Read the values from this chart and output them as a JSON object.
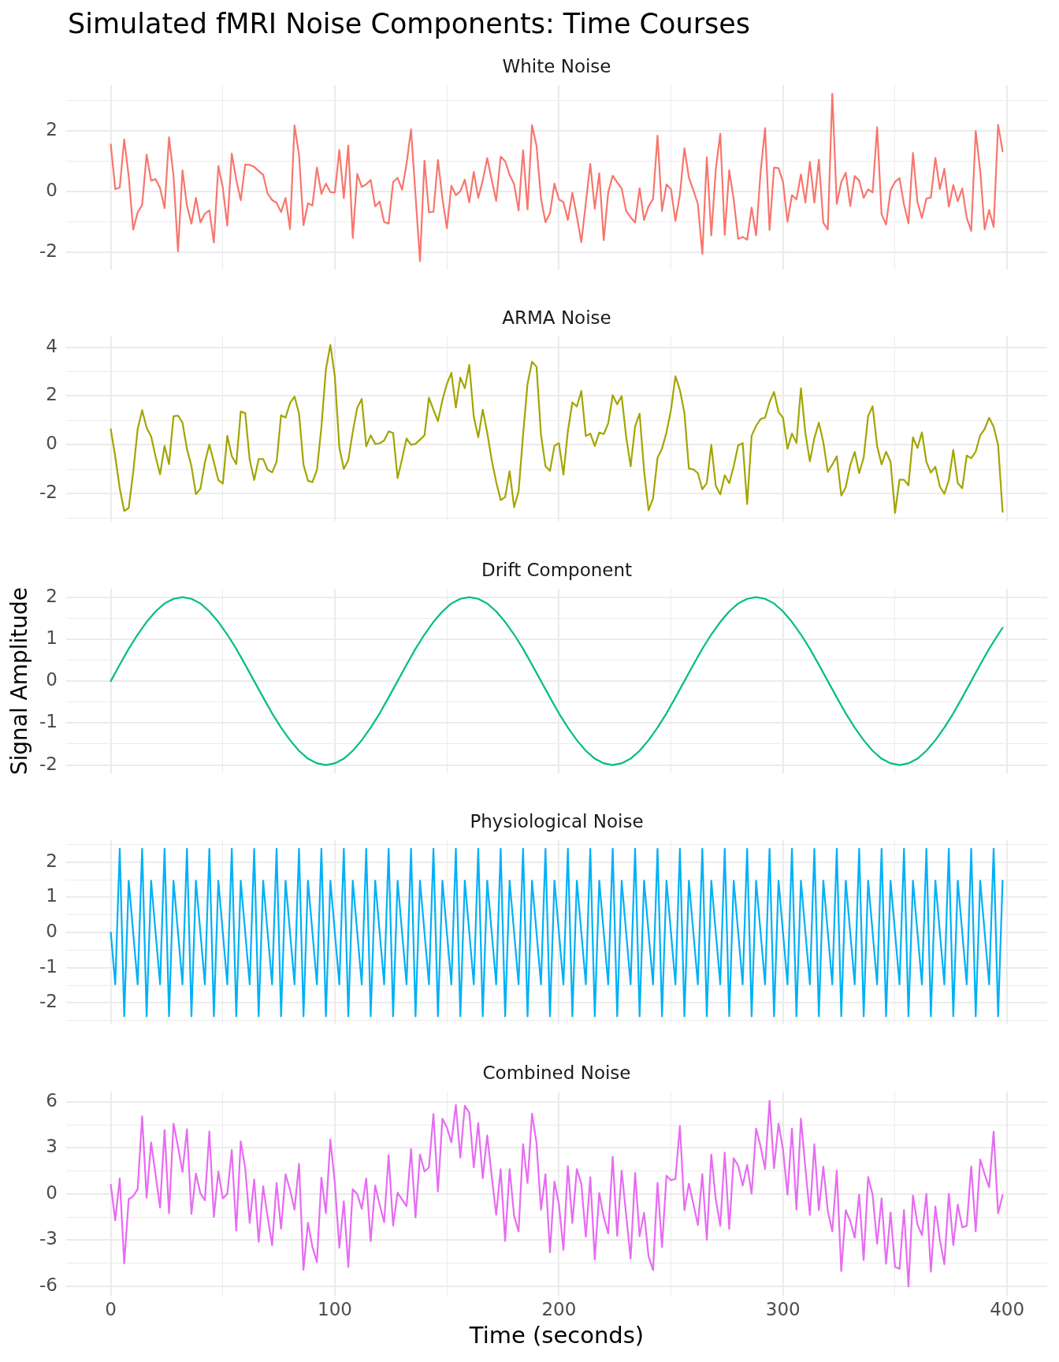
{
  "chart_data": [
    {
      "type": "line",
      "title": "Simulated fMRI Noise Components: Time Courses",
      "subtitle": "White Noise",
      "x": [
        0,
        2,
        4,
        6,
        8,
        10,
        12,
        14,
        16,
        18,
        20,
        22,
        24,
        26,
        28,
        30,
        32,
        34,
        36,
        38,
        40,
        42,
        44,
        46,
        48,
        50,
        52,
        54,
        56,
        58,
        60,
        62,
        64,
        66,
        68,
        70,
        72,
        74,
        76,
        78,
        80,
        82,
        84,
        86,
        88,
        90,
        92,
        94,
        96,
        98,
        100,
        102,
        104,
        106,
        108,
        110,
        112,
        114,
        116,
        118,
        120,
        122,
        124,
        126,
        128,
        130,
        132,
        134,
        136,
        138,
        140,
        142,
        144,
        146,
        148,
        150,
        152,
        154,
        156,
        158,
        160,
        162,
        164,
        166,
        168,
        170,
        172,
        174,
        176,
        178,
        180,
        182,
        184,
        186,
        188,
        190,
        192,
        194,
        196,
        198,
        200,
        202,
        204,
        206,
        208,
        210,
        212,
        214,
        216,
        218,
        220,
        222,
        224,
        226,
        228,
        230,
        232,
        234,
        236,
        238,
        240,
        242,
        244,
        246,
        248,
        250,
        252,
        254,
        256,
        258,
        260,
        262,
        264,
        266,
        268,
        270,
        272,
        274,
        276,
        278,
        280,
        282,
        284,
        286,
        288,
        290,
        292,
        294,
        296,
        298,
        300,
        302,
        304,
        306,
        308,
        310,
        312,
        314,
        316,
        318,
        320,
        322,
        324,
        326,
        328,
        330,
        332,
        334,
        336,
        338,
        340,
        342,
        344,
        346,
        348,
        350,
        352,
        354,
        356,
        358,
        360,
        362,
        364,
        366,
        368,
        370,
        372,
        374,
        376,
        378,
        380,
        382,
        384,
        386,
        388,
        390,
        392,
        394,
        396,
        398
      ],
      "series": [
        {
          "color": "#f8766d",
          "values": [
            1.55,
            0.08,
            0.13,
            1.72,
            0.5,
            -1.26,
            -0.69,
            -0.44,
            1.22,
            0.36,
            0.41,
            0.11,
            -0.55,
            1.79,
            0.52,
            -1.97,
            0.7,
            -0.47,
            -1.06,
            -0.21,
            -1.02,
            -0.73,
            -0.62,
            -1.68,
            0.84,
            0.13,
            -1.13,
            1.25,
            0.39,
            -0.29,
            0.89,
            0.88,
            0.81,
            0.68,
            0.55,
            -0.07,
            -0.28,
            -0.37,
            -0.68,
            -0.21,
            -1.24,
            2.18,
            1.22,
            -1.11,
            -0.39,
            -0.46,
            0.79,
            -0.08,
            0.26,
            -0.02,
            -0.03,
            1.37,
            -0.22,
            1.52,
            -1.53,
            0.58,
            0.15,
            0.24,
            0.38,
            -0.49,
            -0.33,
            -1.01,
            -1.06,
            0.31,
            0.45,
            0.06,
            0.91,
            2.05,
            -0.12,
            -2.3,
            1.02,
            -0.69,
            -0.67,
            1.04,
            -0.23,
            -1.21,
            0.19,
            -0.12,
            0.01,
            0.39,
            -0.36,
            0.65,
            -0.21,
            0.36,
            1.1,
            0.39,
            -0.31,
            1.15,
            1.0,
            0.55,
            0.24,
            -0.62,
            1.36,
            -0.59,
            2.19,
            1.51,
            -0.23,
            -1.01,
            -0.72,
            0.26,
            -0.26,
            -0.35,
            -0.94,
            -0.04,
            -0.82,
            -1.67,
            -0.38,
            0.91,
            -0.57,
            0.6,
            -1.61,
            -0.03,
            0.52,
            0.3,
            0.1,
            -0.64,
            -0.85,
            -1.02,
            0.11,
            -0.94,
            -0.49,
            -0.25,
            1.84,
            -0.64,
            0.23,
            0.08,
            -0.97,
            -0.1,
            1.43,
            0.46,
            0.04,
            -0.41,
            -2.06,
            1.13,
            -1.45,
            0.73,
            1.91,
            -1.43,
            0.7,
            -0.27,
            -1.56,
            -1.5,
            -1.59,
            -0.53,
            -1.45,
            0.64,
            2.09,
            -1.27,
            0.79,
            0.77,
            0.32,
            -1.0,
            -0.12,
            -0.26,
            0.56,
            -0.36,
            0.98,
            -0.37,
            1.05,
            -1.03,
            -1.25,
            3.23,
            -0.41,
            0.31,
            0.62,
            -0.48,
            0.51,
            0.36,
            -0.21,
            0.07,
            -0.03,
            2.12,
            -0.75,
            -1.09,
            0.04,
            0.32,
            0.44,
            -0.43,
            -1.05,
            1.27,
            -0.35,
            -0.87,
            -0.23,
            -0.2,
            1.11,
            0.08,
            0.75,
            -0.5,
            0.21,
            -0.32,
            0.1,
            -0.87,
            -1.3,
            1.99,
            0.69,
            -1.25,
            -0.61,
            -1.17,
            2.2,
            1.33
          ]
        }
      ],
      "xlim": [
        -19.9,
        417.9
      ],
      "ylim": [
        -2.58,
        3.51
      ],
      "xticks": [
        0,
        {
          "value": 50,
          "label": null
        },
        100,
        {
          "value": 150,
          "label": null
        },
        200,
        {
          "value": 250,
          "label": null
        },
        300,
        {
          "value": 350,
          "label": null
        },
        400
      ],
      "yticks": [
        -2,
        {
          "value": -1,
          "label": null
        },
        0,
        {
          "value": 1,
          "label": null
        },
        2,
        {
          "value": 3,
          "label": null
        }
      ],
      "grid": true,
      "tick_labels": "y"
    },
    {
      "type": "line",
      "subtitle": "ARMA Noise",
      "x": [
        0,
        2,
        4,
        6,
        8,
        10,
        12,
        14,
        16,
        18,
        20,
        22,
        24,
        26,
        28,
        30,
        32,
        34,
        36,
        38,
        40,
        42,
        44,
        46,
        48,
        50,
        52,
        54,
        56,
        58,
        60,
        62,
        64,
        66,
        68,
        70,
        72,
        74,
        76,
        78,
        80,
        82,
        84,
        86,
        88,
        90,
        92,
        94,
        96,
        98,
        100,
        102,
        104,
        106,
        108,
        110,
        112,
        114,
        116,
        118,
        120,
        122,
        124,
        126,
        128,
        130,
        132,
        134,
        136,
        138,
        140,
        142,
        144,
        146,
        148,
        150,
        152,
        154,
        156,
        158,
        160,
        162,
        164,
        166,
        168,
        170,
        172,
        174,
        176,
        178,
        180,
        182,
        184,
        186,
        188,
        190,
        192,
        194,
        196,
        198,
        200,
        202,
        204,
        206,
        208,
        210,
        212,
        214,
        216,
        218,
        220,
        222,
        224,
        226,
        228,
        230,
        232,
        234,
        236,
        238,
        240,
        242,
        244,
        246,
        248,
        250,
        252,
        254,
        256,
        258,
        260,
        262,
        264,
        266,
        268,
        270,
        272,
        274,
        276,
        278,
        280,
        282,
        284,
        286,
        288,
        290,
        292,
        294,
        296,
        298,
        300,
        302,
        304,
        306,
        308,
        310,
        312,
        314,
        316,
        318,
        320,
        322,
        324,
        326,
        328,
        330,
        332,
        334,
        336,
        338,
        340,
        342,
        344,
        346,
        348,
        350,
        352,
        354,
        356,
        358,
        360,
        362,
        364,
        366,
        368,
        370,
        372,
        374,
        376,
        378,
        380,
        382,
        384,
        386,
        388,
        390,
        392,
        394,
        396,
        398
      ],
      "series": [
        {
          "color": "#a3a500",
          "values": [
            0.64,
            -0.49,
            -1.78,
            -2.71,
            -2.59,
            -1.13,
            0.64,
            1.42,
            0.7,
            0.35,
            -0.49,
            -1.21,
            -0.05,
            -0.79,
            1.17,
            1.2,
            0.91,
            -0.17,
            -0.88,
            -2.02,
            -1.8,
            -0.72,
            0.01,
            -0.71,
            -1.44,
            -1.59,
            0.37,
            -0.46,
            -0.79,
            1.37,
            1.3,
            -0.62,
            -1.44,
            -0.58,
            -0.58,
            -1.02,
            -1.13,
            -0.7,
            1.21,
            1.12,
            1.71,
            1.98,
            1.29,
            -0.81,
            -1.47,
            -1.53,
            -1.03,
            0.73,
            3.09,
            4.1,
            2.8,
            -0.1,
            -0.99,
            -0.63,
            0.54,
            1.52,
            1.88,
            -0.06,
            0.39,
            0.04,
            0.06,
            0.18,
            0.55,
            0.49,
            -1.37,
            -0.58,
            0.26,
            0.0,
            0.04,
            0.21,
            0.39,
            1.93,
            1.44,
            0.97,
            1.83,
            2.5,
            2.95,
            1.53,
            2.76,
            2.32,
            3.27,
            1.15,
            0.31,
            1.44,
            0.5,
            -0.62,
            -1.52,
            -2.27,
            -2.14,
            -1.08,
            -2.56,
            -1.91,
            0.41,
            2.51,
            3.41,
            3.2,
            0.41,
            -0.88,
            -1.07,
            -0.04,
            0.07,
            -1.22,
            0.57,
            1.74,
            1.57,
            2.21,
            0.36,
            0.46,
            -0.05,
            0.5,
            0.44,
            0.88,
            2.04,
            1.66,
            2.0,
            0.33,
            -0.88,
            0.76,
            1.28,
            -1.05,
            -2.68,
            -2.2,
            -0.53,
            -0.16,
            0.51,
            1.43,
            2.81,
            2.24,
            1.31,
            -0.97,
            -1.01,
            -1.16,
            -1.83,
            -1.57,
            0.0,
            -1.68,
            -2.03,
            -1.25,
            -1.57,
            -0.88,
            -0.02,
            0.07,
            -2.43,
            0.37,
            0.78,
            1.06,
            1.11,
            1.75,
            2.17,
            1.35,
            1.11,
            -0.16,
            0.46,
            0.08,
            2.32,
            0.47,
            -0.68,
            0.28,
            0.91,
            0.1,
            -1.11,
            -0.81,
            -0.47,
            -2.08,
            -1.74,
            -0.84,
            -0.29,
            -1.16,
            -0.53,
            1.18,
            1.58,
            -0.05,
            -0.8,
            -0.28,
            -0.7,
            -2.79,
            -1.43,
            -1.43,
            -1.66,
            0.31,
            -0.13,
            0.51,
            -0.7,
            -1.14,
            -0.9,
            -1.71,
            -2.01,
            -1.45,
            -0.21,
            -1.57,
            -1.78,
            -0.44,
            -0.55,
            -0.28,
            0.39,
            0.65,
            1.11,
            0.74,
            -0.01,
            -2.75
          ]
        }
      ],
      "xlim": [
        -19.9,
        417.9
      ],
      "ylim": [
        -3.13,
        4.44
      ],
      "xticks": [
        0,
        {
          "value": 50,
          "label": null
        },
        100,
        {
          "value": 150,
          "label": null
        },
        200,
        {
          "value": 250,
          "label": null
        },
        300,
        {
          "value": 350,
          "label": null
        },
        400
      ],
      "yticks": [
        {
          "value": -3,
          "label": null
        },
        -2,
        {
          "value": -1,
          "label": null
        },
        0,
        {
          "value": 1,
          "label": null
        },
        2,
        {
          "value": 3,
          "label": null
        },
        4
      ],
      "grid": true,
      "tick_labels": "y"
    },
    {
      "type": "line",
      "subtitle": "Drift Component",
      "ylabel": "Signal Amplitude",
      "x": [
        0,
        4,
        8,
        12,
        16,
        20,
        24,
        28,
        32,
        36,
        40,
        44,
        48,
        52,
        56,
        60,
        64,
        68,
        72,
        76,
        80,
        84,
        88,
        92,
        96,
        100,
        104,
        108,
        112,
        116,
        120,
        124,
        128,
        132,
        136,
        140,
        144,
        148,
        152,
        156,
        160,
        164,
        168,
        172,
        176,
        180,
        184,
        188,
        192,
        196,
        200,
        204,
        208,
        212,
        216,
        220,
        224,
        228,
        232,
        236,
        240,
        244,
        248,
        252,
        256,
        260,
        264,
        268,
        272,
        276,
        280,
        284,
        288,
        292,
        296,
        300,
        304,
        308,
        312,
        316,
        320,
        324,
        328,
        332,
        336,
        340,
        344,
        348,
        352,
        356,
        360,
        364,
        368,
        372,
        376,
        380,
        384,
        388,
        392,
        396,
        398
      ],
      "series": [
        {
          "color": "#00bf7d",
          "values": [
            0,
            0.39,
            0.77,
            1.11,
            1.41,
            1.66,
            1.85,
            1.96,
            2,
            1.96,
            1.85,
            1.66,
            1.41,
            1.11,
            0.77,
            0.39,
            0,
            -0.39,
            -0.77,
            -1.11,
            -1.41,
            -1.66,
            -1.85,
            -1.96,
            -2,
            -1.96,
            -1.85,
            -1.66,
            -1.41,
            -1.11,
            -0.77,
            -0.39,
            0,
            0.39,
            0.77,
            1.11,
            1.41,
            1.66,
            1.85,
            1.96,
            2,
            1.96,
            1.85,
            1.66,
            1.41,
            1.11,
            0.77,
            0.39,
            0,
            -0.39,
            -0.77,
            -1.11,
            -1.41,
            -1.66,
            -1.85,
            -1.96,
            -2,
            -1.96,
            -1.85,
            -1.66,
            -1.41,
            -1.11,
            -0.77,
            -0.39,
            0,
            0.39,
            0.77,
            1.11,
            1.41,
            1.66,
            1.85,
            1.96,
            2,
            1.96,
            1.85,
            1.66,
            1.41,
            1.11,
            0.77,
            0.39,
            0,
            -0.39,
            -0.77,
            -1.11,
            -1.41,
            -1.66,
            -1.85,
            -1.96,
            -2,
            -1.96,
            -1.85,
            -1.66,
            -1.41,
            -1.11,
            -0.77,
            -0.39,
            0,
            0.39,
            0.77,
            1.11,
            1.27
          ]
        }
      ],
      "xlim": [
        -19.9,
        417.9
      ],
      "ylim": [
        -2.2,
        2.2
      ],
      "xticks": [
        0,
        {
          "value": 50,
          "label": null
        },
        100,
        {
          "value": 150,
          "label": null
        },
        200,
        {
          "value": 250,
          "label": null
        },
        300,
        {
          "value": 350,
          "label": null
        },
        400
      ],
      "yticks": [
        -2,
        {
          "value": -1.5,
          "label": null
        },
        -1,
        {
          "value": -0.5,
          "label": null
        },
        0,
        {
          "value": 0.5,
          "label": null
        },
        1,
        {
          "value": 1.5,
          "label": null
        },
        2
      ],
      "grid": true,
      "tick_labels": "y"
    },
    {
      "type": "line",
      "subtitle": "Physiological Noise",
      "x": [
        0,
        2,
        4,
        6,
        8,
        10,
        12,
        14,
        16,
        18,
        20,
        22,
        24,
        26,
        28,
        30,
        32,
        34,
        36,
        38,
        40,
        42,
        44,
        46,
        48,
        50,
        52,
        54,
        56,
        58,
        60,
        62,
        64,
        66,
        68,
        70,
        72,
        74,
        76,
        78,
        80,
        82,
        84,
        86,
        88,
        90,
        92,
        94,
        96,
        98,
        100,
        102,
        104,
        106,
        108,
        110,
        112,
        114,
        116,
        118,
        120,
        122,
        124,
        126,
        128,
        130,
        132,
        134,
        136,
        138,
        140,
        142,
        144,
        146,
        148,
        150,
        152,
        154,
        156,
        158,
        160,
        162,
        164,
        166,
        168,
        170,
        172,
        174,
        176,
        178,
        180,
        182,
        184,
        186,
        188,
        190,
        192,
        194,
        196,
        198,
        200,
        202,
        204,
        206,
        208,
        210,
        212,
        214,
        216,
        218,
        220,
        222,
        224,
        226,
        228,
        230,
        232,
        234,
        236,
        238,
        240,
        242,
        244,
        246,
        248,
        250,
        252,
        254,
        256,
        258,
        260,
        262,
        264,
        266,
        268,
        270,
        272,
        274,
        276,
        278,
        280,
        282,
        284,
        286,
        288,
        290,
        292,
        294,
        296,
        298,
        300,
        302,
        304,
        306,
        308,
        310,
        312,
        314,
        316,
        318,
        320,
        322,
        324,
        326,
        328,
        330,
        332,
        334,
        336,
        338,
        340,
        342,
        344,
        346,
        348,
        350,
        352,
        354,
        356,
        358,
        360,
        362,
        364,
        366,
        368,
        370,
        372,
        374,
        376,
        378,
        380,
        382,
        384,
        386,
        388,
        390,
        392,
        394,
        396,
        398
      ],
      "series": [
        {
          "color": "#00b0f6",
          "values": [
            0,
            -1.47,
            2.38,
            -2.38,
            1.47,
            0,
            -1.47,
            2.38,
            -2.38,
            1.47,
            0,
            -1.47,
            2.38,
            -2.38,
            1.47,
            0,
            -1.47,
            2.38,
            -2.38,
            1.47,
            0,
            -1.47,
            2.38,
            -2.38,
            1.47,
            0,
            -1.47,
            2.38,
            -2.38,
            1.47,
            0,
            -1.47,
            2.38,
            -2.38,
            1.47,
            0,
            -1.47,
            2.38,
            -2.38,
            1.47,
            0,
            -1.47,
            2.38,
            -2.38,
            1.47,
            0,
            -1.47,
            2.38,
            -2.38,
            1.47,
            0,
            -1.47,
            2.38,
            -2.38,
            1.47,
            0,
            -1.47,
            2.38,
            -2.38,
            1.47,
            0,
            -1.47,
            2.38,
            -2.38,
            1.47,
            0,
            -1.47,
            2.38,
            -2.38,
            1.47,
            0,
            -1.47,
            2.38,
            -2.38,
            1.47,
            0,
            -1.47,
            2.38,
            -2.38,
            1.47,
            0,
            -1.47,
            2.38,
            -2.38,
            1.47,
            0,
            -1.47,
            2.38,
            -2.38,
            1.47,
            0,
            -1.47,
            2.38,
            -2.38,
            1.47,
            0,
            -1.47,
            2.38,
            -2.38,
            1.47,
            0,
            -1.47,
            2.38,
            -2.38,
            1.47,
            0,
            -1.47,
            2.38,
            -2.38,
            1.47,
            0,
            -1.47,
            2.38,
            -2.38,
            1.47,
            0,
            -1.47,
            2.38,
            -2.38,
            1.47,
            0,
            -1.47,
            2.38,
            -2.38,
            1.47,
            0,
            -1.47,
            2.38,
            -2.38,
            1.47,
            0,
            -1.47,
            2.38,
            -2.38,
            1.47,
            0,
            -1.47,
            2.38,
            -2.38,
            1.47,
            0,
            -1.47,
            2.38,
            -2.38,
            1.47,
            0,
            -1.47,
            2.38,
            -2.38,
            1.47,
            0,
            -1.47,
            2.38,
            -2.38,
            1.47,
            0,
            -1.47,
            2.38,
            -2.38,
            1.47,
            0,
            -1.47,
            2.38,
            -2.38,
            1.47,
            0,
            -1.47,
            2.38,
            -2.38,
            1.47,
            0,
            -1.47,
            2.38,
            -2.38,
            1.47,
            0,
            -1.47,
            2.38,
            -2.38,
            1.47,
            0,
            -1.47,
            2.38,
            -2.38,
            1.47,
            0,
            -1.47,
            2.38,
            -2.38,
            1.47,
            0,
            -1.47,
            2.38,
            -2.38,
            1.47,
            0,
            -1.47,
            2.38,
            -2.38,
            1.47
          ]
        }
      ],
      "xlim": [
        -19.9,
        417.9
      ],
      "ylim": [
        -2.62,
        2.62
      ],
      "xticks": [
        0,
        {
          "value": 50,
          "label": null
        },
        100,
        {
          "value": 150,
          "label": null
        },
        200,
        {
          "value": 250,
          "label": null
        },
        300,
        {
          "value": 350,
          "label": null
        },
        400
      ],
      "yticks": [
        {
          "value": -2.5,
          "label": null
        },
        -2,
        {
          "value": -1.5,
          "label": null
        },
        -1,
        {
          "value": -0.5,
          "label": null
        },
        0,
        {
          "value": 0.5,
          "label": null
        },
        1,
        {
          "value": 1.5,
          "label": null
        },
        2,
        {
          "value": 2.5,
          "label": null
        }
      ],
      "grid": true,
      "tick_labels": "y"
    },
    {
      "type": "line",
      "subtitle": "Combined Noise",
      "xlabel": "Time (seconds)",
      "x": [
        0,
        2,
        4,
        6,
        8,
        10,
        12,
        14,
        16,
        18,
        20,
        22,
        24,
        26,
        28,
        30,
        32,
        34,
        36,
        38,
        40,
        42,
        44,
        46,
        48,
        50,
        52,
        54,
        56,
        58,
        60,
        62,
        64,
        66,
        68,
        70,
        72,
        74,
        76,
        78,
        80,
        82,
        84,
        86,
        88,
        90,
        92,
        94,
        96,
        98,
        100,
        102,
        104,
        106,
        108,
        110,
        112,
        114,
        116,
        118,
        120,
        122,
        124,
        126,
        128,
        130,
        132,
        134,
        136,
        138,
        140,
        142,
        144,
        146,
        148,
        150,
        152,
        154,
        156,
        158,
        160,
        162,
        164,
        166,
        168,
        170,
        172,
        174,
        176,
        178,
        180,
        182,
        184,
        186,
        188,
        190,
        192,
        194,
        196,
        198,
        200,
        202,
        204,
        206,
        208,
        210,
        212,
        214,
        216,
        218,
        220,
        222,
        224,
        226,
        228,
        230,
        232,
        234,
        236,
        238,
        240,
        242,
        244,
        246,
        248,
        250,
        252,
        254,
        256,
        258,
        260,
        262,
        264,
        266,
        268,
        270,
        272,
        274,
        276,
        278,
        280,
        282,
        284,
        286,
        288,
        290,
        292,
        294,
        296,
        298,
        300,
        302,
        304,
        306,
        308,
        310,
        312,
        314,
        316,
        318,
        320,
        322,
        324,
        326,
        328,
        330,
        332,
        334,
        336,
        338,
        340,
        342,
        344,
        346,
        348,
        350,
        352,
        354,
        356,
        358,
        360,
        362,
        364,
        366,
        368,
        370,
        372,
        374,
        376,
        378,
        380,
        382,
        384,
        386,
        388,
        390,
        392,
        394,
        396,
        398
      ],
      "series": [
        {
          "color": "#e76bf3",
          "values": [
            0.61,
            -1.71,
            1.02,
            -4.51,
            -0.34,
            -0.14,
            0.32,
            5.05,
            -0.25,
            3.36,
            1.24,
            -0.88,
            4.17,
            -1.24,
            4.58,
            3.09,
            1.44,
            4.22,
            -1.29,
            1.33,
            0.05,
            -0.41,
            4.06,
            -1.49,
            1.47,
            -0.29,
            0.0,
            2.86,
            -2.39,
            3.43,
            1.69,
            -1.87,
            0.95,
            -3.11,
            0.5,
            -1.47,
            -3.34,
            0.72,
            -2.26,
            1.29,
            0.27,
            -1.02,
            1.96,
            -4.92,
            -1.87,
            -3.45,
            -4.42,
            1.06,
            -1.24,
            3.54,
            0.72,
            -3.5,
            -0.47,
            -4.74,
            0.32,
            0.0,
            -0.97,
            1.02,
            -3.07,
            0.56,
            -0.7,
            -1.83,
            2.53,
            -2.05,
            0.09,
            -0.36,
            -0.79,
            2.93,
            -1.53,
            2.57,
            1.47,
            1.74,
            5.21,
            0.16,
            4.9,
            4.33,
            3.36,
            5.8,
            2.37,
            5.75,
            5.28,
            1.74,
            4.62,
            1.02,
            3.81,
            1.17,
            -1.35,
            1.62,
            -3.05,
            1.62,
            -1.42,
            -2.44,
            3.25,
            0.72,
            5.23,
            3.32,
            -1.02,
            1.29,
            -3.79,
            0.81,
            -0.65,
            -3.63,
            1.82,
            -1.89,
            1.62,
            0.67,
            -2.78,
            1.09,
            -4.26,
            0.06,
            -1.5,
            -2.57,
            2.43,
            -2.72,
            1.52,
            -1.36,
            -4.2,
            1.38,
            -2.74,
            -1.22,
            -4.05,
            -4.95,
            0.73,
            -3.45,
            1.2,
            0.89,
            0.99,
            4.44,
            -1.05,
            0.67,
            -0.65,
            -2.01,
            1.3,
            -2.98,
            2.57,
            -0.34,
            -2.07,
            2.7,
            -2.27,
            2.33,
            1.84,
            0.55,
            1.89,
            0.02,
            4.26,
            3.1,
            1.62,
            6.06,
            1.68,
            4.58,
            2.9,
            -0.04,
            4.26,
            -1.01,
            4.91,
            1.68,
            -1.36,
            3.24,
            -1.05,
            1.78,
            -1.11,
            -2.43,
            1.52,
            -5.01,
            -1.05,
            -1.76,
            -2.84,
            -0.04,
            -4.3,
            1.11,
            -0.04,
            -3.24,
            -0.28,
            -4.54,
            -1.2,
            -4.74,
            -4.87,
            -1.03,
            -6.02,
            -0.1,
            -1.97,
            -2.68,
            0.02,
            -5.05,
            -0.81,
            -2.98,
            -4.56,
            0.02,
            -3.32,
            -0.69,
            -2.17,
            -2.07,
            1.8,
            -2.43,
            2.25,
            1.28,
            0.43,
            4.05,
            -1.26,
            -0.08
          ]
        }
      ],
      "xlim": [
        -19.9,
        417.9
      ],
      "ylim": [
        -6.62,
        6.66
      ],
      "xticks": [
        0,
        {
          "value": 50,
          "label": null
        },
        100,
        {
          "value": 150,
          "label": null
        },
        200,
        {
          "value": 250,
          "label": null
        },
        300,
        {
          "value": 350,
          "label": null
        },
        400
      ],
      "yticks": [
        -6,
        {
          "value": -4.5,
          "label": null
        },
        -3,
        {
          "value": -1.5,
          "label": null
        },
        0,
        {
          "value": 1.5,
          "label": null
        },
        3,
        {
          "value": 4.5,
          "label": null
        },
        6
      ],
      "grid": true
    }
  ]
}
